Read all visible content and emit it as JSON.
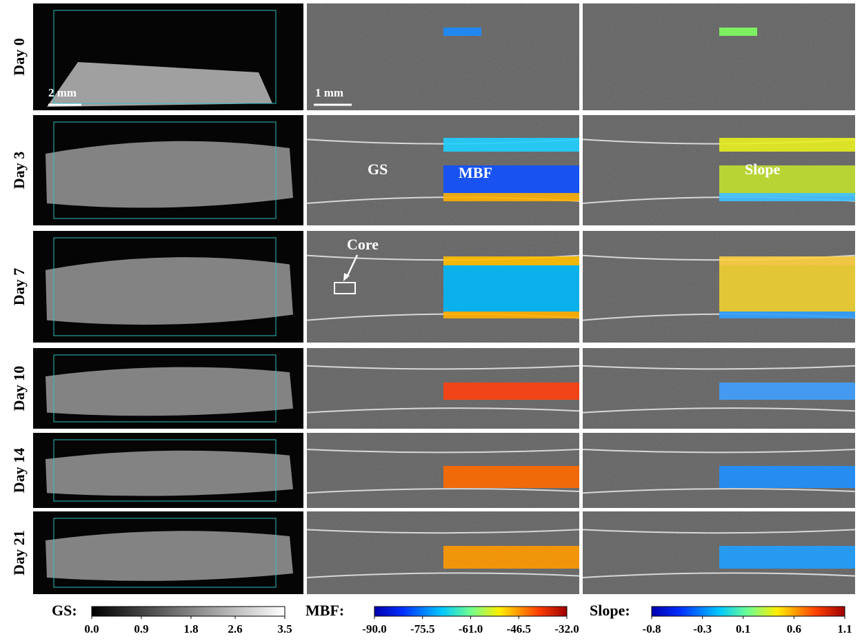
{
  "rows": [
    {
      "label": "Day 0"
    },
    {
      "label": "Day 3"
    },
    {
      "label": "Day 7"
    },
    {
      "label": "Day 10"
    },
    {
      "label": "Day 14"
    },
    {
      "label": "Day 21"
    }
  ],
  "annotations": {
    "scale_3d": "2 mm",
    "scale_2d": "1 mm",
    "gs": "GS",
    "mbf": "MBF",
    "slope": "Slope",
    "core": "Core"
  },
  "colorbars": [
    {
      "name": "GS:",
      "ticks": [
        {
          "value": 0,
          "label": "0.0"
        },
        {
          "value": 0.9,
          "label": "0.9"
        },
        {
          "value": 1.8,
          "label": "1.8"
        },
        {
          "value": 2.6,
          "label": "2.6"
        },
        {
          "value": 3.5,
          "label": "3.5"
        }
      ]
    },
    {
      "name": "MBF:",
      "ticks": [
        {
          "value": -90,
          "label": "-90.0"
        },
        {
          "value": -75.5,
          "label": "-75.5"
        },
        {
          "value": -61,
          "label": "-61.0"
        },
        {
          "value": -46.5,
          "label": "-46.5"
        },
        {
          "value": -32,
          "label": "-32.0"
        }
      ]
    },
    {
      "name": "Slope:",
      "ticks": [
        {
          "value": -0.8,
          "label": "-0.8"
        },
        {
          "value": -0.3,
          "label": "-0.3"
        },
        {
          "value": 0.1,
          "label": "0.1"
        },
        {
          "value": 0.6,
          "label": "0.6"
        },
        {
          "value": 1.1,
          "label": "1.1"
        }
      ]
    }
  ]
}
